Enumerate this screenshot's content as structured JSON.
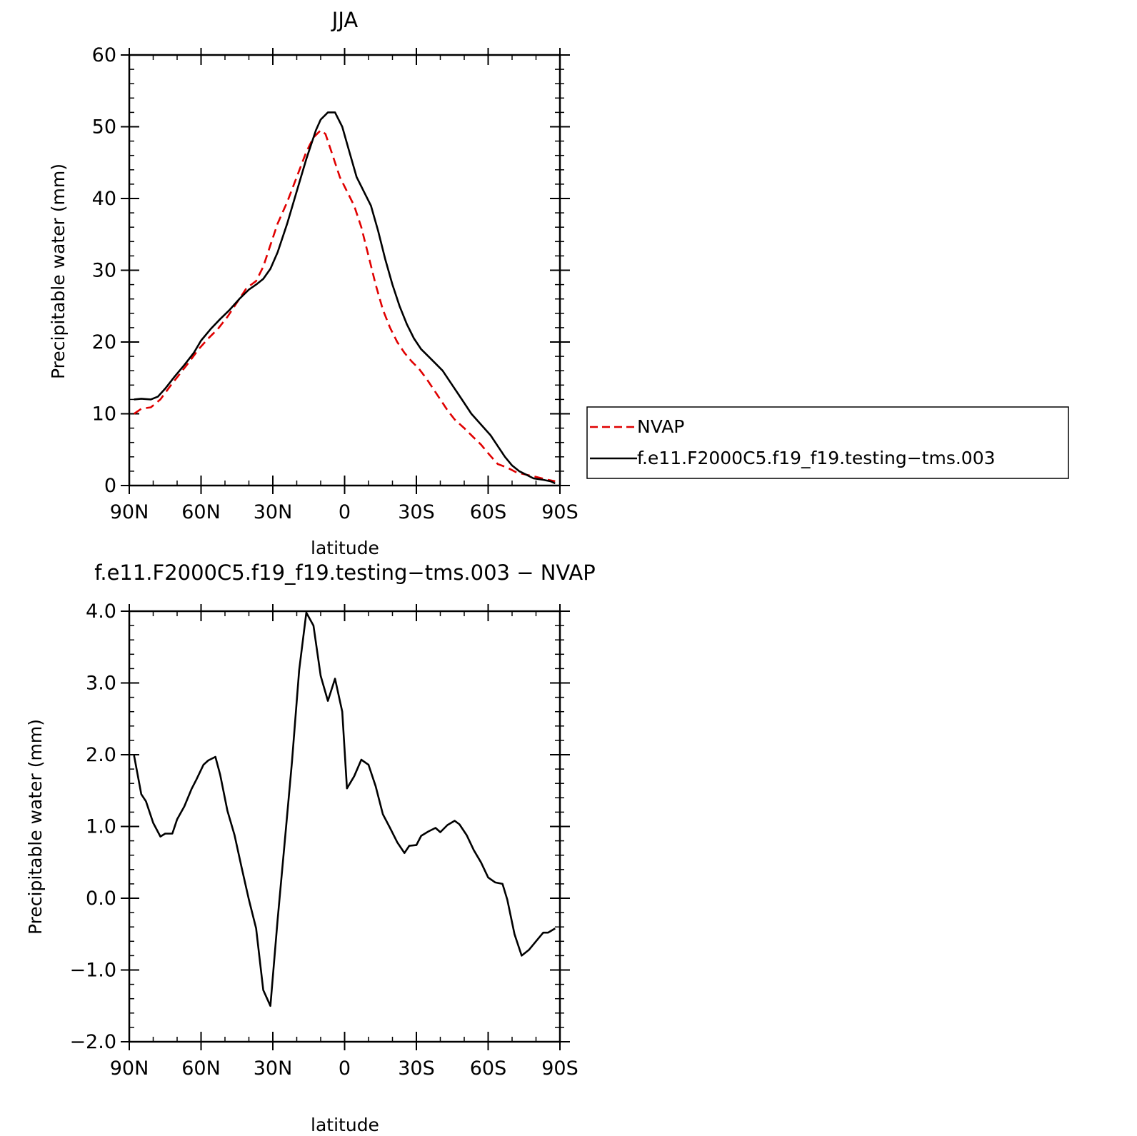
{
  "chart_data": [
    {
      "type": "line",
      "title": "JJA",
      "xlabel": "latitude",
      "ylabel": "Precipitable water (mm)",
      "xlim": [
        -90,
        90
      ],
      "ylim": [
        0,
        60
      ],
      "x_ticks": [
        {
          "value": -90,
          "label": "90N"
        },
        {
          "value": -60,
          "label": "60N"
        },
        {
          "value": -30,
          "label": "30N"
        },
        {
          "value": 0,
          "label": "0"
        },
        {
          "value": 30,
          "label": "30S"
        },
        {
          "value": 60,
          "label": "60S"
        },
        {
          "value": 90,
          "label": "90S"
        }
      ],
      "y_ticks": [
        {
          "value": 0,
          "label": "0"
        },
        {
          "value": 10,
          "label": "10"
        },
        {
          "value": 20,
          "label": "20"
        },
        {
          "value": 30,
          "label": "30"
        },
        {
          "value": 40,
          "label": "40"
        },
        {
          "value": 50,
          "label": "50"
        },
        {
          "value": 60,
          "label": "60"
        }
      ],
      "legend_position": "right",
      "series": [
        {
          "name": "NVAP",
          "color": "#e00000",
          "dash": "dashed",
          "points": [
            [
              -88,
              10.0
            ],
            [
              -85,
              10.7
            ],
            [
              -81,
              10.9
            ],
            [
              -77,
              12.0
            ],
            [
              -73,
              13.8
            ],
            [
              -69,
              15.5
            ],
            [
              -65,
              17.2
            ],
            [
              -61,
              19.0
            ],
            [
              -57,
              20.5
            ],
            [
              -53,
              21.8
            ],
            [
              -49,
              23.5
            ],
            [
              -45,
              25.5
            ],
            [
              -41,
              27.5
            ],
            [
              -37,
              28.5
            ],
            [
              -34,
              30.5
            ],
            [
              -31,
              33.5
            ],
            [
              -28,
              36.5
            ],
            [
              -24,
              39.5
            ],
            [
              -20,
              43.0
            ],
            [
              -16,
              46.5
            ],
            [
              -13,
              48.5
            ],
            [
              -10,
              49.5
            ],
            [
              -8,
              49.0
            ],
            [
              -5,
              46.0
            ],
            [
              -2,
              43.0
            ],
            [
              1,
              41.0
            ],
            [
              4,
              39.0
            ],
            [
              7,
              36.0
            ],
            [
              10,
              32.0
            ],
            [
              13,
              28.0
            ],
            [
              16,
              24.5
            ],
            [
              19,
              22.0
            ],
            [
              22,
              20.0
            ],
            [
              25,
              18.5
            ],
            [
              28,
              17.3
            ],
            [
              31,
              16.3
            ],
            [
              34,
              15.0
            ],
            [
              37,
              13.5
            ],
            [
              40,
              12.0
            ],
            [
              43,
              10.5
            ],
            [
              46,
              9.2
            ],
            [
              50,
              8.0
            ],
            [
              53,
              7.0
            ],
            [
              57,
              5.7
            ],
            [
              60,
              4.5
            ],
            [
              64,
              3.0
            ],
            [
              68,
              2.5
            ],
            [
              72,
              1.8
            ],
            [
              76,
              1.5
            ],
            [
              80,
              1.2
            ],
            [
              85,
              0.8
            ],
            [
              88,
              0.6
            ]
          ]
        },
        {
          "name": "f.e11.F2000C5.f19_f19.testing−tms.003",
          "color": "#000000",
          "dash": "solid",
          "points": [
            [
              -88,
              12.0
            ],
            [
              -85,
              12.1
            ],
            [
              -81,
              12.0
            ],
            [
              -78,
              12.4
            ],
            [
              -75,
              13.5
            ],
            [
              -71,
              15.2
            ],
            [
              -67,
              16.8
            ],
            [
              -63,
              18.5
            ],
            [
              -60,
              20.2
            ],
            [
              -56,
              21.8
            ],
            [
              -52,
              23.2
            ],
            [
              -48,
              24.5
            ],
            [
              -44,
              26.0
            ],
            [
              -40,
              27.3
            ],
            [
              -37,
              28.0
            ],
            [
              -34,
              28.8
            ],
            [
              -31,
              30.2
            ],
            [
              -28,
              32.5
            ],
            [
              -24,
              36.5
            ],
            [
              -20,
              41.0
            ],
            [
              -16,
              45.5
            ],
            [
              -12,
              49.5
            ],
            [
              -10,
              51.0
            ],
            [
              -7,
              52.0
            ],
            [
              -4,
              52.0
            ],
            [
              -1,
              50.0
            ],
            [
              2,
              46.5
            ],
            [
              5,
              43.0
            ],
            [
              8,
              41.0
            ],
            [
              11,
              39.0
            ],
            [
              14,
              35.5
            ],
            [
              17,
              31.5
            ],
            [
              20,
              28.0
            ],
            [
              23,
              25.0
            ],
            [
              26,
              22.5
            ],
            [
              29,
              20.5
            ],
            [
              32,
              19.0
            ],
            [
              35,
              18.0
            ],
            [
              38,
              17.0
            ],
            [
              41,
              16.0
            ],
            [
              44,
              14.5
            ],
            [
              47,
              13.0
            ],
            [
              50,
              11.5
            ],
            [
              53,
              10.0
            ],
            [
              57,
              8.5
            ],
            [
              61,
              7.0
            ],
            [
              64,
              5.5
            ],
            [
              67,
              4.0
            ],
            [
              70,
              2.8
            ],
            [
              73,
              2.0
            ],
            [
              76,
              1.5
            ],
            [
              79,
              1.0
            ],
            [
              83,
              0.8
            ],
            [
              86,
              0.6
            ],
            [
              88,
              0.3
            ]
          ]
        }
      ]
    },
    {
      "type": "line",
      "title": "f.e11.F2000C5.f19_f19.testing−tms.003 − NVAP",
      "xlabel": "latitude",
      "ylabel": "Precipitable water (mm)",
      "xlim": [
        -90,
        90
      ],
      "ylim": [
        -2.0,
        4.0
      ],
      "x_ticks": [
        {
          "value": -90,
          "label": "90N"
        },
        {
          "value": -60,
          "label": "60N"
        },
        {
          "value": -30,
          "label": "30N"
        },
        {
          "value": 0,
          "label": "0"
        },
        {
          "value": 30,
          "label": "30S"
        },
        {
          "value": 60,
          "label": "60S"
        },
        {
          "value": 90,
          "label": "90S"
        }
      ],
      "y_ticks": [
        {
          "value": -2.0,
          "label": "−2.0"
        },
        {
          "value": -1.0,
          "label": "−1.0"
        },
        {
          "value": 0.0,
          "label": "0.0"
        },
        {
          "value": 1.0,
          "label": "1.0"
        },
        {
          "value": 2.0,
          "label": "2.0"
        },
        {
          "value": 3.0,
          "label": "3.0"
        },
        {
          "value": 4.0,
          "label": "4.0"
        }
      ],
      "series": [
        {
          "color": "#000000",
          "dash": "solid",
          "points": [
            [
              -88,
              1.99
            ],
            [
              -85,
              1.45
            ],
            [
              -83,
              1.35
            ],
            [
              -80,
              1.05
            ],
            [
              -77,
              0.86
            ],
            [
              -75,
              0.9
            ],
            [
              -72,
              0.9
            ],
            [
              -70,
              1.1
            ],
            [
              -67,
              1.28
            ],
            [
              -64,
              1.52
            ],
            [
              -62,
              1.65
            ],
            [
              -59,
              1.86
            ],
            [
              -57,
              1.92
            ],
            [
              -54,
              1.97
            ],
            [
              -52,
              1.72
            ],
            [
              -49,
              1.22
            ],
            [
              -46,
              0.88
            ],
            [
              -43,
              0.42
            ],
            [
              -40,
              -0.02
            ],
            [
              -37,
              -0.42
            ],
            [
              -34,
              -1.28
            ],
            [
              -31,
              -1.5
            ],
            [
              -28,
              -0.3
            ],
            [
              -25,
              0.8
            ],
            [
              -22,
              1.9
            ],
            [
              -19,
              3.18
            ],
            [
              -16,
              3.98
            ],
            [
              -13,
              3.8
            ],
            [
              -10,
              3.1
            ],
            [
              -7,
              2.75
            ],
            [
              -4,
              3.06
            ],
            [
              -1,
              2.6
            ],
            [
              1,
              1.53
            ],
            [
              4,
              1.7
            ],
            [
              7,
              1.93
            ],
            [
              10,
              1.86
            ],
            [
              13,
              1.56
            ],
            [
              16,
              1.17
            ],
            [
              19,
              0.98
            ],
            [
              22,
              0.78
            ],
            [
              25,
              0.63
            ],
            [
              27,
              0.73
            ],
            [
              30,
              0.74
            ],
            [
              32,
              0.87
            ],
            [
              35,
              0.93
            ],
            [
              38,
              0.98
            ],
            [
              40,
              0.92
            ],
            [
              43,
              1.02
            ],
            [
              46,
              1.08
            ],
            [
              48,
              1.03
            ],
            [
              51,
              0.88
            ],
            [
              54,
              0.67
            ],
            [
              57,
              0.5
            ],
            [
              60,
              0.29
            ],
            [
              63,
              0.22
            ],
            [
              66,
              0.2
            ],
            [
              68,
              -0.02
            ],
            [
              71,
              -0.5
            ],
            [
              74,
              -0.8
            ],
            [
              77,
              -0.72
            ],
            [
              80,
              -0.6
            ],
            [
              83,
              -0.48
            ],
            [
              85,
              -0.48
            ],
            [
              88,
              -0.42
            ]
          ]
        }
      ]
    }
  ]
}
